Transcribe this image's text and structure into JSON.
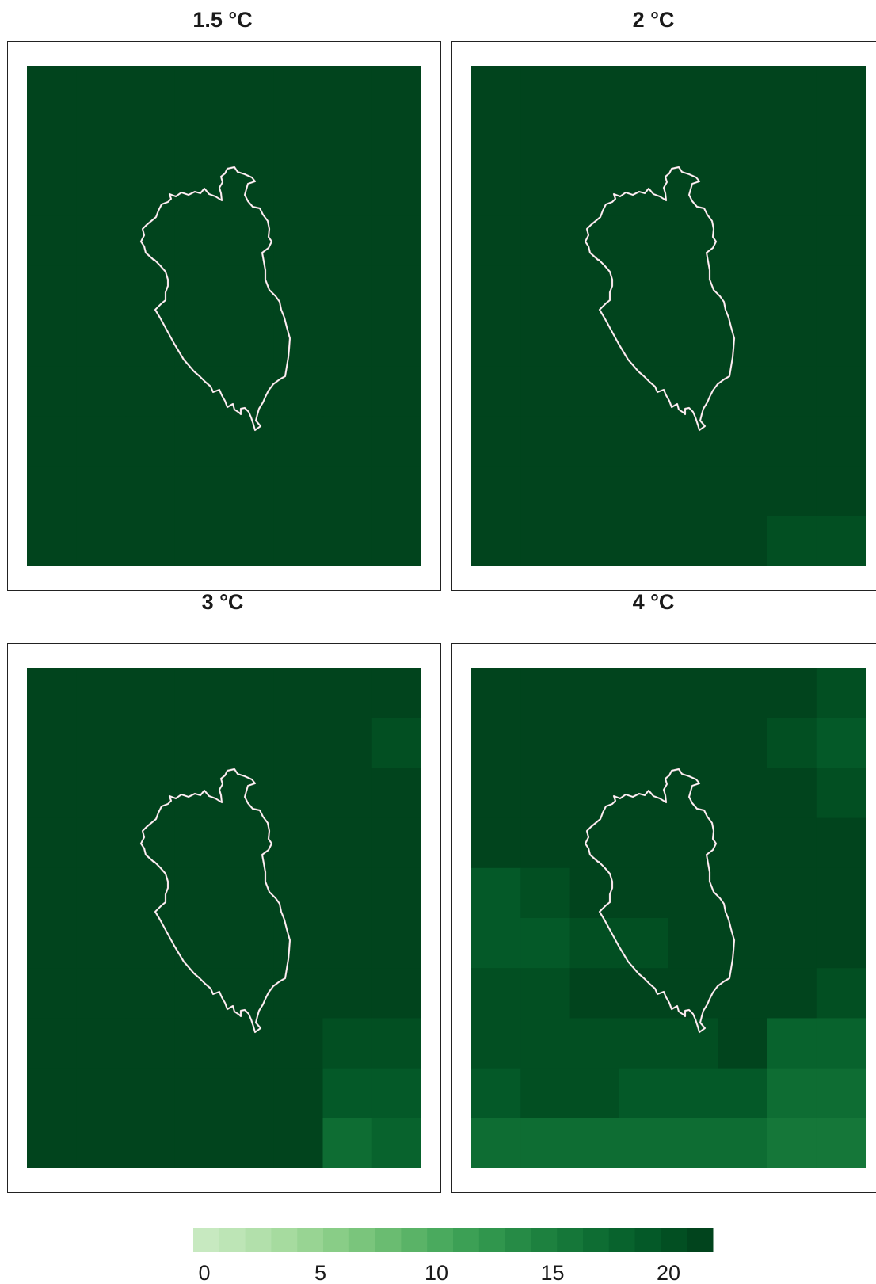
{
  "chart_data": {
    "type": "heatmap",
    "colorbar": {
      "min": 0,
      "max": 22,
      "ticks": [
        0,
        5,
        10,
        15,
        20
      ],
      "tick_labels": [
        "0",
        "5",
        "10",
        "15",
        "20"
      ],
      "colors": [
        "#c7e9c0",
        "#bde5b6",
        "#b2e0ab",
        "#a6db9f",
        "#98d493",
        "#89cd87",
        "#7ac57c",
        "#6abc71",
        "#5ab367",
        "#4aaa5e",
        "#3ca055",
        "#30964d",
        "#268b46",
        "#1d813f",
        "#157739",
        "#0e6d33",
        "#08632d",
        "#045928",
        "#024f22",
        "#01441d"
      ]
    },
    "panels": [
      {
        "title": "1.5 °C",
        "values": [
          [
            22,
            22,
            22,
            22,
            22,
            22,
            22,
            22
          ],
          [
            22,
            22,
            22,
            22,
            22,
            22,
            22,
            22
          ],
          [
            22,
            22,
            22,
            22,
            22,
            22,
            22,
            22
          ],
          [
            22,
            22,
            22,
            22,
            22,
            22,
            22,
            22
          ],
          [
            22,
            22,
            22,
            22,
            22,
            22,
            22,
            22
          ],
          [
            22,
            22,
            22,
            22,
            22,
            22,
            22,
            22
          ],
          [
            22,
            22,
            22,
            22,
            22,
            22,
            22,
            22
          ],
          [
            22,
            22,
            22,
            22,
            22,
            22,
            22,
            22
          ],
          [
            22,
            22,
            22,
            22,
            22,
            22,
            22,
            22
          ],
          [
            22,
            22,
            22,
            22,
            22,
            22,
            21,
            22
          ]
        ]
      },
      {
        "title": "2 °C",
        "values": [
          [
            22,
            22,
            22,
            22,
            22,
            22,
            22,
            22
          ],
          [
            22,
            22,
            22,
            22,
            22,
            22,
            22,
            22
          ],
          [
            22,
            22,
            22,
            22,
            22,
            22,
            22,
            22
          ],
          [
            22,
            22,
            22,
            22,
            22,
            22,
            22,
            22
          ],
          [
            22,
            22,
            22,
            22,
            22,
            22,
            22,
            22
          ],
          [
            22,
            22,
            22,
            22,
            22,
            22,
            22,
            22
          ],
          [
            22,
            22,
            22,
            22,
            22,
            22,
            22,
            22
          ],
          [
            22,
            22,
            22,
            22,
            22,
            22,
            22,
            22
          ],
          [
            22,
            22,
            22,
            22,
            22,
            22,
            21,
            21
          ],
          [
            22,
            22,
            22,
            22,
            22,
            22,
            20,
            20
          ]
        ]
      },
      {
        "title": "3 °C",
        "values": [
          [
            22,
            22,
            22,
            22,
            22,
            22,
            22,
            22
          ],
          [
            22,
            22,
            22,
            22,
            22,
            22,
            21,
            20
          ],
          [
            22,
            22,
            22,
            22,
            22,
            22,
            22,
            21
          ],
          [
            22,
            22,
            22,
            22,
            22,
            22,
            22,
            22
          ],
          [
            21,
            21,
            22,
            22,
            22,
            22,
            22,
            22
          ],
          [
            21,
            21,
            21,
            22,
            22,
            22,
            22,
            22
          ],
          [
            22,
            22,
            22,
            22,
            22,
            22,
            22,
            22
          ],
          [
            22,
            22,
            22,
            22,
            22,
            22,
            20,
            20
          ],
          [
            21,
            21,
            21,
            21,
            21,
            21,
            19,
            19
          ],
          [
            21,
            21,
            21,
            21,
            21,
            21,
            17,
            18
          ]
        ]
      },
      {
        "title": "4 °C",
        "values": [
          [
            22,
            22,
            22,
            22,
            22,
            22,
            22,
            20
          ],
          [
            22,
            22,
            22,
            22,
            22,
            22,
            20,
            19
          ],
          [
            22,
            22,
            22,
            22,
            22,
            22,
            22,
            20
          ],
          [
            21,
            21,
            21,
            22,
            22,
            22,
            22,
            22
          ],
          [
            19,
            20,
            21,
            21,
            22,
            22,
            22,
            22
          ],
          [
            19,
            19,
            20,
            20,
            21,
            22,
            22,
            22
          ],
          [
            20,
            20,
            21,
            22,
            22,
            22,
            21,
            20
          ],
          [
            20,
            20,
            20,
            20,
            20,
            21,
            18,
            18
          ],
          [
            19,
            20,
            20,
            19,
            19,
            19,
            17,
            17
          ],
          [
            17,
            17,
            17,
            17,
            17,
            17,
            16,
            16
          ]
        ]
      }
    ]
  }
}
